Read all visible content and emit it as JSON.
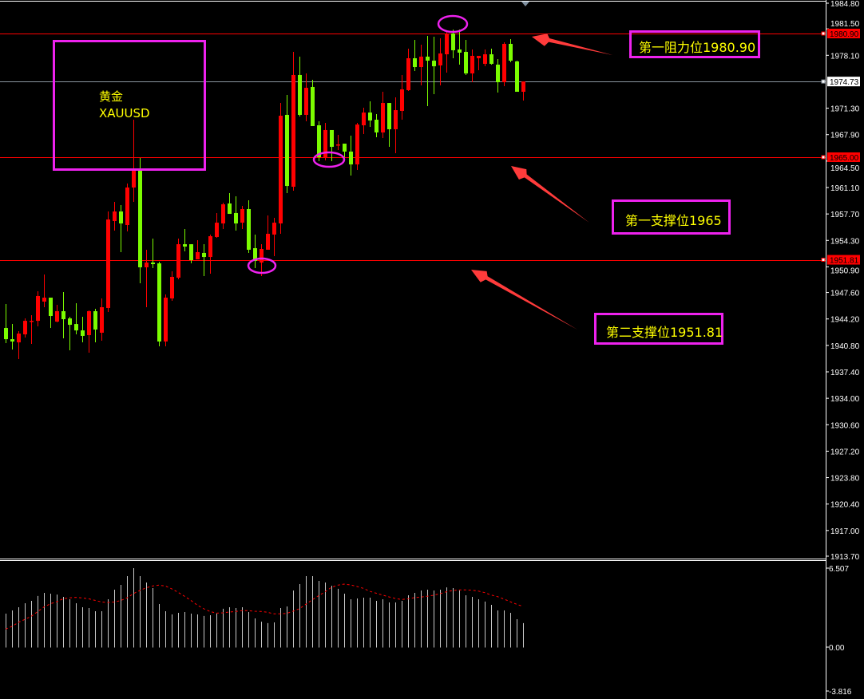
{
  "symbol_box": {
    "name_cn": "黄金",
    "ticker": "XAUUSD"
  },
  "annotations": {
    "resistance1": "第一阻力位1980.90",
    "support1": "第一支撑位1965",
    "support2": "第二支撑位1951.81"
  },
  "colors": {
    "background": "#000000",
    "up_candle": "#ff0000",
    "down_candle": "#7cfc00",
    "level_line": "#ff0000",
    "bid_line": "#8c96a0",
    "annotation_border": "#ee22ee",
    "annotation_text": "#ffff00",
    "arrow": "#ff3b3b",
    "histogram": "#c8c8c8",
    "signal_line": "#ff0000"
  },
  "chart_data": [
    {
      "type": "candlestick",
      "up_color_meaning": "red = rising, green = falling",
      "ylim": [
        1913.7,
        1984.8
      ],
      "y_ticks": [
        "1984.80",
        "1981.50",
        "1978.10",
        "1971.30",
        "1967.90",
        "1964.50",
        "1961.10",
        "1957.70",
        "1954.30",
        "1950.90",
        "1947.60",
        "1944.20",
        "1940.80",
        "1937.40",
        "1934.00",
        "1930.60",
        "1927.20",
        "1923.80",
        "1920.40",
        "1917.00",
        "1913.70"
      ],
      "price_tags": [
        {
          "label": "1980.90",
          "value": 1980.9,
          "style": "level"
        },
        {
          "label": "1974.73",
          "value": 1974.73,
          "style": "bid"
        },
        {
          "label": "1965.00",
          "value": 1965.0,
          "style": "level"
        },
        {
          "label": "1951.81",
          "value": 1951.81,
          "style": "level"
        }
      ],
      "horizontal_lines": [
        {
          "value": 1980.9,
          "style": "level"
        },
        {
          "value": 1974.73,
          "style": "bid"
        },
        {
          "value": 1965.0,
          "style": "level"
        },
        {
          "value": 1951.81,
          "style": "level"
        }
      ],
      "ohlc_fields": [
        "open",
        "high",
        "low",
        "close"
      ],
      "ohlc": [
        [
          1943.04,
          1946.12,
          1941.09,
          1941.6
        ],
        [
          1941.6,
          1943.55,
          1940.27,
          1941.3
        ],
        [
          1941.19,
          1942.63,
          1939.04,
          1942.32
        ],
        [
          1942.22,
          1944.27,
          1941.81,
          1943.96
        ],
        [
          1943.86,
          1944.68,
          1940.99,
          1943.96
        ],
        [
          1943.96,
          1947.76,
          1943.25,
          1947.15
        ],
        [
          1946.43,
          1949.92,
          1945.71,
          1946.94
        ],
        [
          1946.94,
          1946.94,
          1943.04,
          1944.58
        ],
        [
          1943.86,
          1946.02,
          1943.76,
          1945.2
        ],
        [
          1945.2,
          1947.66,
          1941.71,
          1944.17
        ],
        [
          1944.27,
          1944.48,
          1940.17,
          1943.45
        ],
        [
          1943.55,
          1946.22,
          1942.22,
          1942.73
        ],
        [
          1942.73,
          1944.48,
          1941.19,
          1942.02
        ],
        [
          1942.12,
          1945.3,
          1939.86,
          1945.2
        ],
        [
          1945.2,
          1945.5,
          1941.19,
          1942.84
        ],
        [
          1942.43,
          1946.84,
          1941.4,
          1945.71
        ],
        [
          1945.61,
          1958.02,
          1945.09,
          1956.99
        ],
        [
          1956.79,
          1959.25,
          1955.56,
          1958.02
        ],
        [
          1958.02,
          1958.84,
          1952.79,
          1956.48
        ],
        [
          1956.28,
          1961.61,
          1955.46,
          1961.1
        ],
        [
          1961.1,
          1969.82,
          1959.25,
          1963.46
        ],
        [
          1963.46,
          1964.9,
          1948.79,
          1950.84
        ],
        [
          1950.84,
          1953.1,
          1945.71,
          1951.45
        ],
        [
          1951.45,
          1954.53,
          1950.74,
          1951.25
        ],
        [
          1951.35,
          1951.56,
          1940.68,
          1941.3
        ],
        [
          1941.3,
          1947.35,
          1940.68,
          1946.94
        ],
        [
          1946.84,
          1950.33,
          1946.53,
          1949.61
        ],
        [
          1949.51,
          1954.53,
          1949.3,
          1953.81
        ],
        [
          1953.81,
          1955.76,
          1952.89,
          1953.51
        ],
        [
          1953.81,
          1953.81,
          1951.35,
          1951.76
        ],
        [
          1951.86,
          1954.33,
          1951.86,
          1952.79
        ],
        [
          1952.69,
          1953.81,
          1949.71,
          1952.17
        ],
        [
          1952.17,
          1955.05,
          1950.02,
          1954.84
        ],
        [
          1954.74,
          1957.82,
          1954.64,
          1956.58
        ],
        [
          1956.48,
          1959.15,
          1955.76,
          1958.94
        ],
        [
          1959.05,
          1960.38,
          1957.71,
          1957.71
        ],
        [
          1957.82,
          1959.97,
          1955.56,
          1956.48
        ],
        [
          1956.58,
          1958.74,
          1955.76,
          1958.33
        ],
        [
          1958.33,
          1959.46,
          1952.69,
          1953.1
        ],
        [
          1953.3,
          1955.05,
          1950.74,
          1951.66
        ],
        [
          1951.45,
          1953.81,
          1949.71,
          1953.2
        ],
        [
          1953.1,
          1957.51,
          1953.1,
          1955.15
        ],
        [
          1955.05,
          1957.2,
          1952.28,
          1956.58
        ],
        [
          1956.48,
          1971.97,
          1955.15,
          1970.33
        ],
        [
          1970.44,
          1973.0,
          1960.38,
          1961.3
        ],
        [
          1961.2,
          1978.54,
          1960.69,
          1975.57
        ],
        [
          1975.57,
          1977.93,
          1970.23,
          1970.44
        ],
        [
          1970.44,
          1975.77,
          1969.61,
          1973.92
        ],
        [
          1974.03,
          1974.95,
          1969.0,
          1969.0
        ],
        [
          1969.1,
          1969.61,
          1964.48,
          1965.0
        ],
        [
          1965.0,
          1969.41,
          1964.59,
          1968.49
        ],
        [
          1968.49,
          1968.49,
          1964.48,
          1966.33
        ],
        [
          1966.54,
          1967.87,
          1965.92,
          1966.64
        ],
        [
          1966.74,
          1966.74,
          1965.0,
          1965.72
        ],
        [
          1965.72,
          1967.77,
          1962.64,
          1964.07
        ],
        [
          1964.07,
          1969.41,
          1963.36,
          1969.2
        ],
        [
          1969.1,
          1971.36,
          1967.97,
          1970.74
        ],
        [
          1970.74,
          1972.18,
          1968.9,
          1969.72
        ],
        [
          1969.82,
          1970.54,
          1967.56,
          1968.18
        ],
        [
          1968.18,
          1973.41,
          1967.46,
          1971.97
        ],
        [
          1971.97,
          1971.97,
          1966.33,
          1968.59
        ],
        [
          1968.59,
          1972.69,
          1965.51,
          1971.05
        ],
        [
          1970.95,
          1975.57,
          1969.82,
          1973.72
        ],
        [
          1973.62,
          1978.95,
          1973.51,
          1977.72
        ],
        [
          1977.72,
          1980.08,
          1976.08,
          1976.59
        ],
        [
          1976.59,
          1979.46,
          1974.23,
          1977.93
        ],
        [
          1977.93,
          1980.59,
          1971.56,
          1977.41
        ],
        [
          1977.41,
          1980.49,
          1973.1,
          1976.69
        ],
        [
          1976.8,
          1980.29,
          1974.23,
          1978.34
        ],
        [
          1978.23,
          1981.11,
          1975.87,
          1980.9
        ],
        [
          1980.9,
          1981.41,
          1977.72,
          1978.75
        ],
        [
          1978.85,
          1981.41,
          1976.9,
          1978.44
        ],
        [
          1978.54,
          1980.08,
          1975.57,
          1975.77
        ],
        [
          1975.77,
          1978.85,
          1974.64,
          1978.03
        ],
        [
          1977.72,
          1978.03,
          1976.18,
          1978.03
        ],
        [
          1977.0,
          1978.85,
          1976.69,
          1978.23
        ],
        [
          1978.23,
          1978.95,
          1976.9,
          1977.0
        ],
        [
          1976.9,
          1977.62,
          1973.31,
          1974.64
        ],
        [
          1974.64,
          1979.77,
          1974.13,
          1979.57
        ],
        [
          1979.57,
          1980.18,
          1977.21,
          1977.41
        ],
        [
          1977.31,
          1977.41,
          1973.41,
          1973.41
        ],
        [
          1973.41,
          1974.74,
          1972.28,
          1974.74
        ]
      ]
    },
    {
      "type": "bar",
      "ylim": [
        -3.816,
        6.507
      ],
      "y_ticks": [
        "6.507",
        "0.00",
        "-3.816"
      ],
      "series": [
        {
          "style": "histogram",
          "values": [
            2.74,
            3.0,
            3.25,
            3.58,
            3.77,
            4.16,
            4.41,
            4.35,
            4.28,
            4.09,
            3.9,
            3.58,
            3.25,
            3.19,
            2.93,
            2.93,
            3.9,
            4.67,
            5.06,
            5.77,
            6.41,
            5.77,
            5.25,
            4.8,
            3.51,
            2.93,
            2.67,
            2.8,
            2.87,
            2.74,
            2.67,
            2.55,
            2.61,
            2.74,
            3.13,
            3.25,
            3.19,
            3.25,
            2.87,
            2.35,
            2.09,
            1.97,
            2.03,
            3.19,
            3.32,
            4.61,
            5.12,
            5.77,
            5.77,
            5.38,
            5.25,
            4.99,
            4.74,
            4.35,
            3.9,
            3.96,
            4.03,
            4.03,
            3.77,
            3.9,
            3.64,
            3.64,
            3.77,
            4.22,
            4.41,
            4.61,
            4.67,
            4.61,
            4.67,
            4.86,
            4.8,
            4.61,
            4.22,
            4.09,
            3.9,
            3.71,
            3.45,
            3.0,
            3.0,
            2.8,
            2.29,
            1.97
          ]
        },
        {
          "style": "dotted-line",
          "values": [
            1.49,
            1.71,
            2.03,
            2.27,
            2.52,
            2.89,
            3.27,
            3.53,
            3.7,
            3.94,
            4.01,
            4.05,
            4.01,
            3.94,
            3.81,
            3.68,
            3.64,
            3.68,
            3.79,
            4.01,
            4.35,
            4.61,
            4.82,
            4.97,
            5.04,
            4.97,
            4.74,
            4.46,
            4.14,
            3.81,
            3.43,
            3.14,
            2.91,
            2.78,
            2.8,
            2.87,
            2.91,
            2.98,
            2.98,
            2.93,
            2.91,
            2.85,
            2.72,
            2.72,
            2.76,
            2.93,
            3.14,
            3.49,
            3.85,
            4.18,
            4.5,
            4.86,
            5.04,
            5.12,
            5.06,
            4.93,
            4.78,
            4.54,
            4.39,
            4.24,
            4.09,
            3.96,
            3.88,
            3.94,
            4.03,
            4.07,
            4.14,
            4.22,
            4.35,
            4.5,
            4.61,
            4.65,
            4.65,
            4.63,
            4.56,
            4.43,
            4.24,
            4.11,
            3.92,
            3.7,
            3.49,
            3.32
          ]
        }
      ]
    }
  ]
}
